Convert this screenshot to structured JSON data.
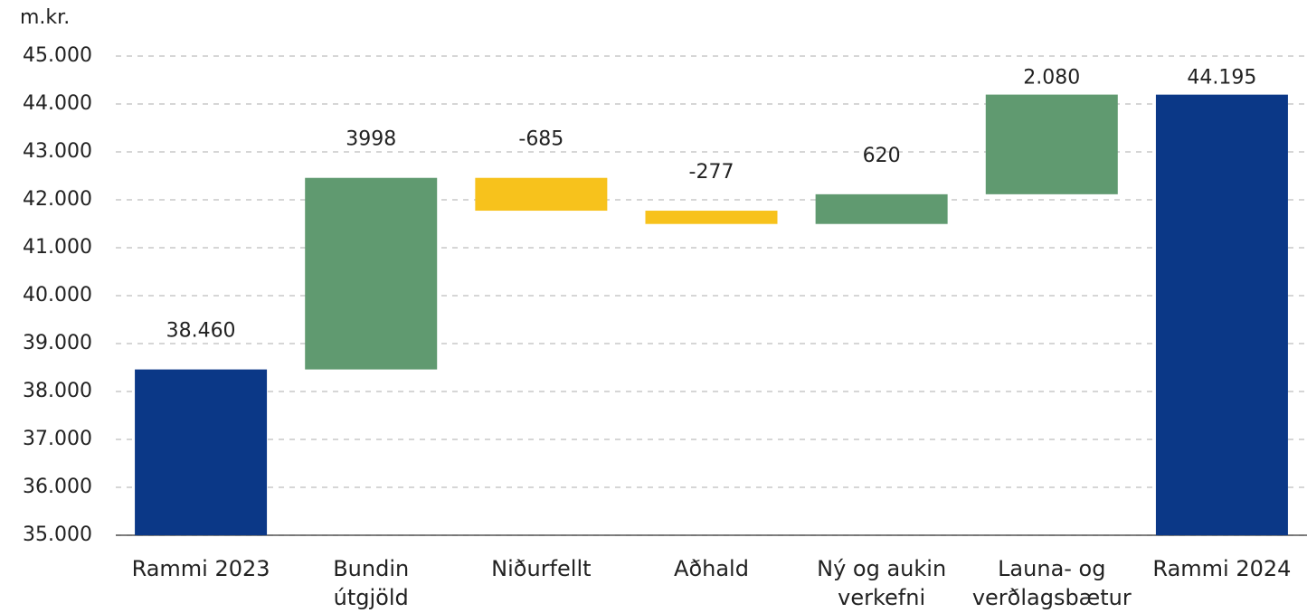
{
  "chart_data": {
    "type": "waterfall",
    "y_axis_label": "m.kr.",
    "categories": [
      [
        "Rammi 2023"
      ],
      [
        "Bundin",
        "útgjöld"
      ],
      [
        "Niðurfellt"
      ],
      [
        "Aðhald"
      ],
      [
        "Ný og aukin",
        "verkefni"
      ],
      [
        "Launa- og",
        "verðlagsbætur"
      ],
      [
        "Rammi 2024"
      ]
    ],
    "values": [
      38460,
      3998,
      -685,
      -277,
      620,
      2080,
      44195
    ],
    "value_labels": [
      "38.460",
      "3998",
      "-685",
      "-277",
      "620",
      "2.080",
      "44.195"
    ],
    "colors": {
      "total": "#0b3887",
      "increase": "#609a70",
      "decrease": "#f7c21c"
    },
    "ylim": [
      35000,
      45000
    ],
    "yticks": [
      {
        "value": 35000,
        "label": "35.000"
      },
      {
        "value": 36000,
        "label": "36.000"
      },
      {
        "value": 37000,
        "label": "37.000"
      },
      {
        "value": 38000,
        "label": "38.000"
      },
      {
        "value": 39000,
        "label": "39.000"
      },
      {
        "value": 40000,
        "label": "40.000"
      },
      {
        "value": 41000,
        "label": "41.000"
      },
      {
        "value": 42000,
        "label": "42.000"
      },
      {
        "value": 43000,
        "label": "43.000"
      },
      {
        "value": 44000,
        "label": "44.000"
      },
      {
        "value": 45000,
        "label": "45.000"
      }
    ],
    "grid": true
  }
}
